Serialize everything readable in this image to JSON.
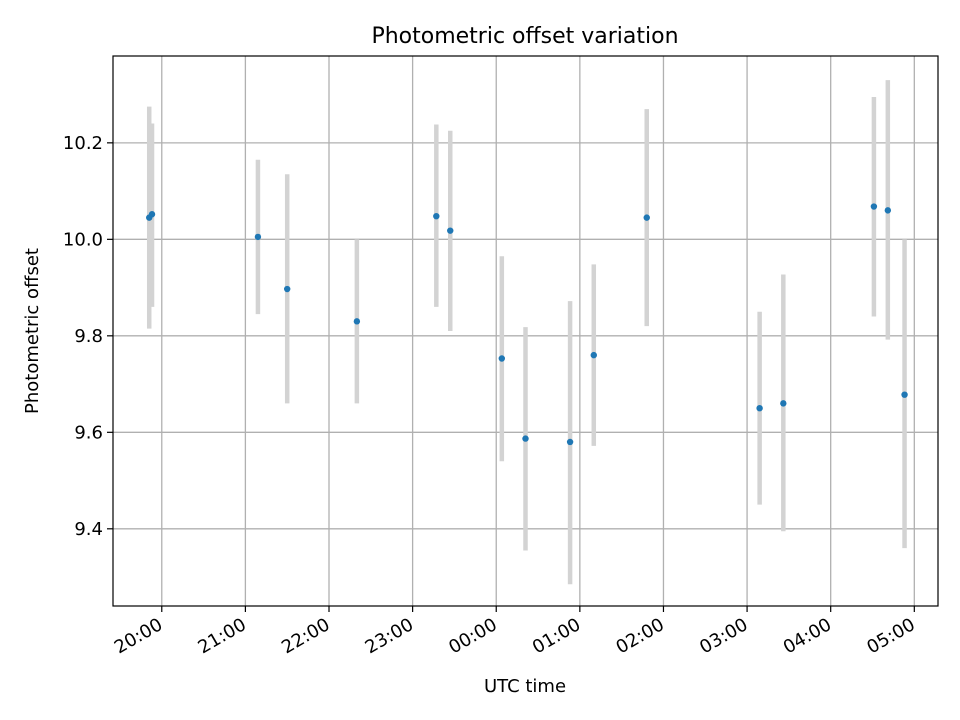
{
  "colors": {
    "point": "#1f77b4",
    "errorbar": "#d3d3d3",
    "grid": "#b0b0b0",
    "axis": "#000000",
    "background": "#ffffff"
  },
  "chart_data": {
    "type": "scatter",
    "title": "Photometric offset variation",
    "xlabel": "UTC time",
    "ylabel": "Photometric offset",
    "grid": true,
    "x_unit": "UTC time",
    "x_range": [
      "19:25",
      "05:17"
    ],
    "ylim": [
      9.24,
      10.38
    ],
    "x_ticks": [
      "20:00",
      "21:00",
      "22:00",
      "23:00",
      "00:00",
      "01:00",
      "02:00",
      "03:00",
      "04:00",
      "05:00"
    ],
    "y_ticks": [
      "9.4",
      "9.6",
      "9.8",
      "10.0",
      "10.2"
    ],
    "series": [
      {
        "points": [
          {
            "x": "19:51",
            "y": 10.045,
            "lo": 9.815,
            "hi": 10.275
          },
          {
            "x": "19:53",
            "y": 10.052,
            "lo": 9.86,
            "hi": 10.24
          },
          {
            "x": "21:09",
            "y": 10.005,
            "lo": 9.845,
            "hi": 10.165
          },
          {
            "x": "21:30",
            "y": 9.897,
            "lo": 9.66,
            "hi": 10.135
          },
          {
            "x": "22:20",
            "y": 9.83,
            "lo": 9.66,
            "hi": 10.0
          },
          {
            "x": "23:17",
            "y": 10.048,
            "lo": 9.86,
            "hi": 10.238
          },
          {
            "x": "23:27",
            "y": 10.018,
            "lo": 9.81,
            "hi": 10.225
          },
          {
            "x": "00:04",
            "y": 9.753,
            "lo": 9.54,
            "hi": 9.965
          },
          {
            "x": "00:21",
            "y": 9.587,
            "lo": 9.355,
            "hi": 9.818
          },
          {
            "x": "00:53",
            "y": 9.58,
            "lo": 9.285,
            "hi": 9.872
          },
          {
            "x": "01:10",
            "y": 9.76,
            "lo": 9.572,
            "hi": 9.948
          },
          {
            "x": "01:48",
            "y": 10.045,
            "lo": 9.82,
            "hi": 10.27
          },
          {
            "x": "03:09",
            "y": 9.65,
            "lo": 9.45,
            "hi": 9.85
          },
          {
            "x": "03:26",
            "y": 9.66,
            "lo": 9.395,
            "hi": 9.927
          },
          {
            "x": "04:31",
            "y": 10.068,
            "lo": 9.84,
            "hi": 10.295
          },
          {
            "x": "04:41",
            "y": 10.06,
            "lo": 9.792,
            "hi": 10.33
          },
          {
            "x": "04:53",
            "y": 9.678,
            "lo": 9.36,
            "hi": 10.0
          }
        ]
      }
    ]
  }
}
